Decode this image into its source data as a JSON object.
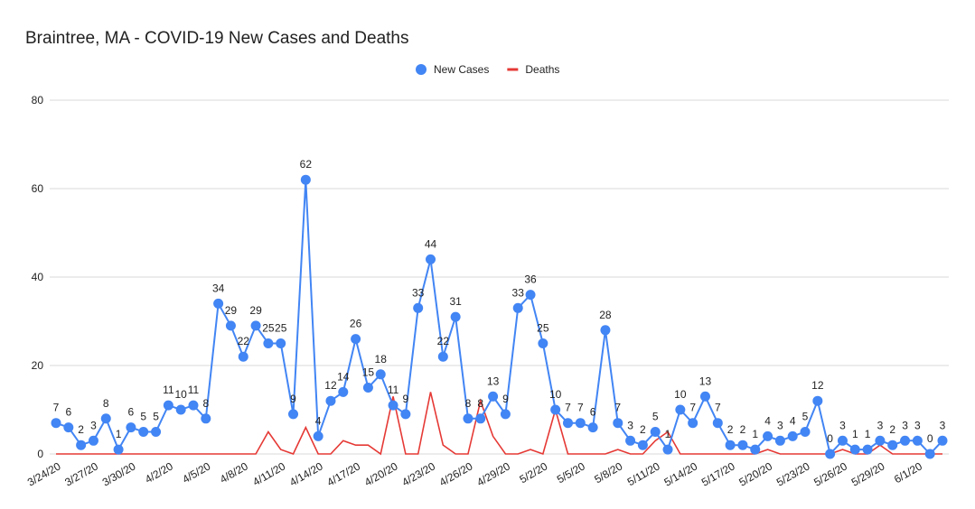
{
  "chart_data": {
    "type": "line",
    "title": "Braintree, MA - COVID-19 New Cases and Deaths",
    "categories": [
      "3/24/20",
      null,
      null,
      "3/27/20",
      null,
      null,
      "3/30/20",
      null,
      null,
      "4/2/20",
      null,
      null,
      "4/5/20",
      null,
      null,
      "4/8/20",
      null,
      null,
      "4/11/20",
      null,
      null,
      "4/14/20",
      null,
      null,
      "4/17/20",
      null,
      null,
      "4/20/20",
      null,
      null,
      "4/23/20",
      null,
      null,
      "4/26/20",
      null,
      null,
      "4/29/20",
      null,
      null,
      "5/2/20",
      null,
      null,
      "5/5/20",
      null,
      null,
      "5/8/20",
      null,
      null,
      "5/11/20",
      null,
      null,
      "5/14/20",
      null,
      null,
      "5/17/20",
      null,
      null,
      "5/20/20",
      null,
      null,
      "5/23/20",
      null,
      null,
      "5/26/20",
      null,
      null,
      "5/29/20",
      null,
      null,
      "6/1/20",
      null,
      null
    ],
    "series": [
      {
        "name": "New Cases",
        "color": "#4285f4",
        "labels": true,
        "values": [
          7,
          6,
          2,
          3,
          8,
          1,
          6,
          5,
          5,
          11,
          10,
          11,
          8,
          34,
          29,
          22,
          29,
          25,
          25,
          9,
          62,
          4,
          12,
          14,
          26,
          15,
          18,
          11,
          9,
          33,
          44,
          22,
          31,
          8,
          8,
          13,
          9,
          33,
          36,
          25,
          10,
          7,
          7,
          6,
          28,
          7,
          3,
          2,
          5,
          1,
          10,
          7,
          13,
          7,
          2,
          2,
          1,
          4,
          3,
          4,
          5,
          12,
          0,
          3,
          1,
          1,
          3,
          2,
          3,
          3,
          0,
          3
        ]
      },
      {
        "name": "Deaths",
        "color": "#e53935",
        "labels": false,
        "values": [
          0,
          0,
          0,
          0,
          0,
          0,
          0,
          0,
          0,
          0,
          0,
          0,
          0,
          0,
          0,
          0,
          0,
          5,
          1,
          0,
          6,
          0,
          0,
          3,
          2,
          2,
          0,
          13,
          0,
          0,
          14,
          2,
          0,
          0,
          12,
          4,
          0,
          0,
          1,
          0,
          10,
          0,
          0,
          0,
          0,
          1,
          0,
          0,
          3,
          5,
          0,
          0,
          0,
          0,
          0,
          0,
          0,
          1,
          0,
          0,
          0,
          0,
          0,
          1,
          0,
          0,
          2,
          0,
          0,
          0,
          0,
          0
        ]
      }
    ],
    "ylim": [
      0,
      80
    ],
    "yticks": [
      0,
      20,
      40,
      60,
      80
    ],
    "grid": true,
    "legend": "top"
  }
}
